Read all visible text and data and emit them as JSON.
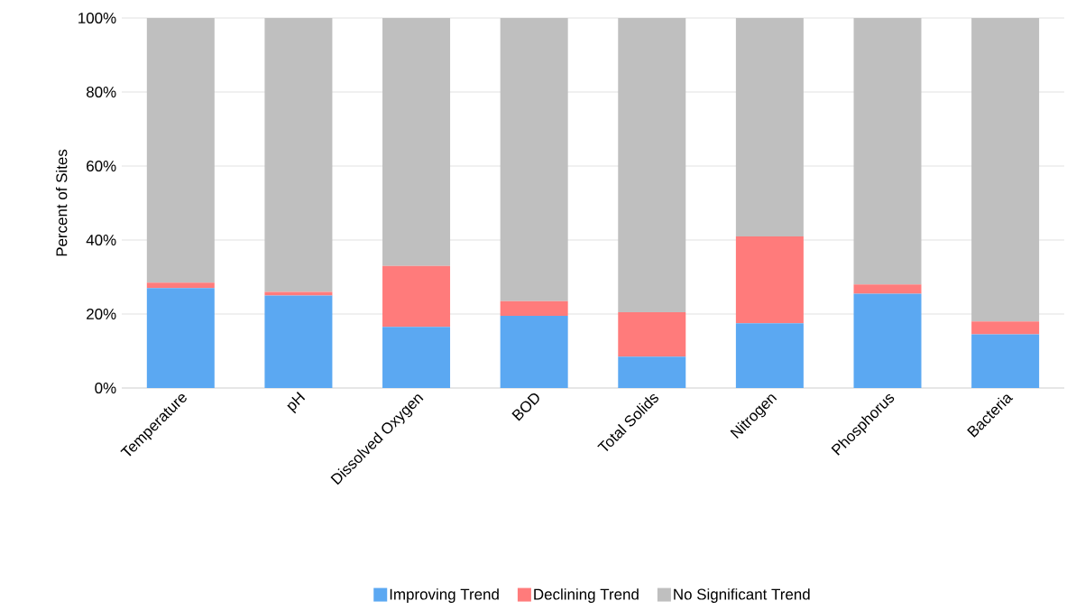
{
  "chart_data": {
    "type": "bar",
    "stacked": true,
    "ylabel": "Percent of Sites",
    "categories": [
      "Temperature",
      "pH",
      "Dissolved Oxygen",
      "BOD",
      "Total Solids",
      "Nitrogen",
      "Phosphorus",
      "Bacteria"
    ],
    "series": [
      {
        "name": "Improving Trend",
        "color": "#5ba8f2",
        "values": [
          27,
          25,
          16.5,
          19.5,
          8.5,
          17.5,
          25.5,
          14.5
        ]
      },
      {
        "name": "Declining Trend",
        "color": "#ff7b7b",
        "values": [
          1.5,
          1,
          16.5,
          4,
          12,
          23.5,
          2.5,
          3.5
        ]
      },
      {
        "name": "No Significant Trend",
        "color": "#bfbfbf",
        "values": [
          71.5,
          74,
          67,
          76.5,
          79.5,
          59,
          72,
          82
        ]
      }
    ],
    "ylim": [
      0,
      100
    ],
    "yticks": [
      {
        "value": 0,
        "label": "0%"
      },
      {
        "value": 20,
        "label": "20%"
      },
      {
        "value": 40,
        "label": "40%"
      },
      {
        "value": 60,
        "label": "60%"
      },
      {
        "value": 80,
        "label": "80%"
      },
      {
        "value": 100,
        "label": "100%"
      }
    ],
    "grid": "y",
    "legend": "bottom"
  }
}
